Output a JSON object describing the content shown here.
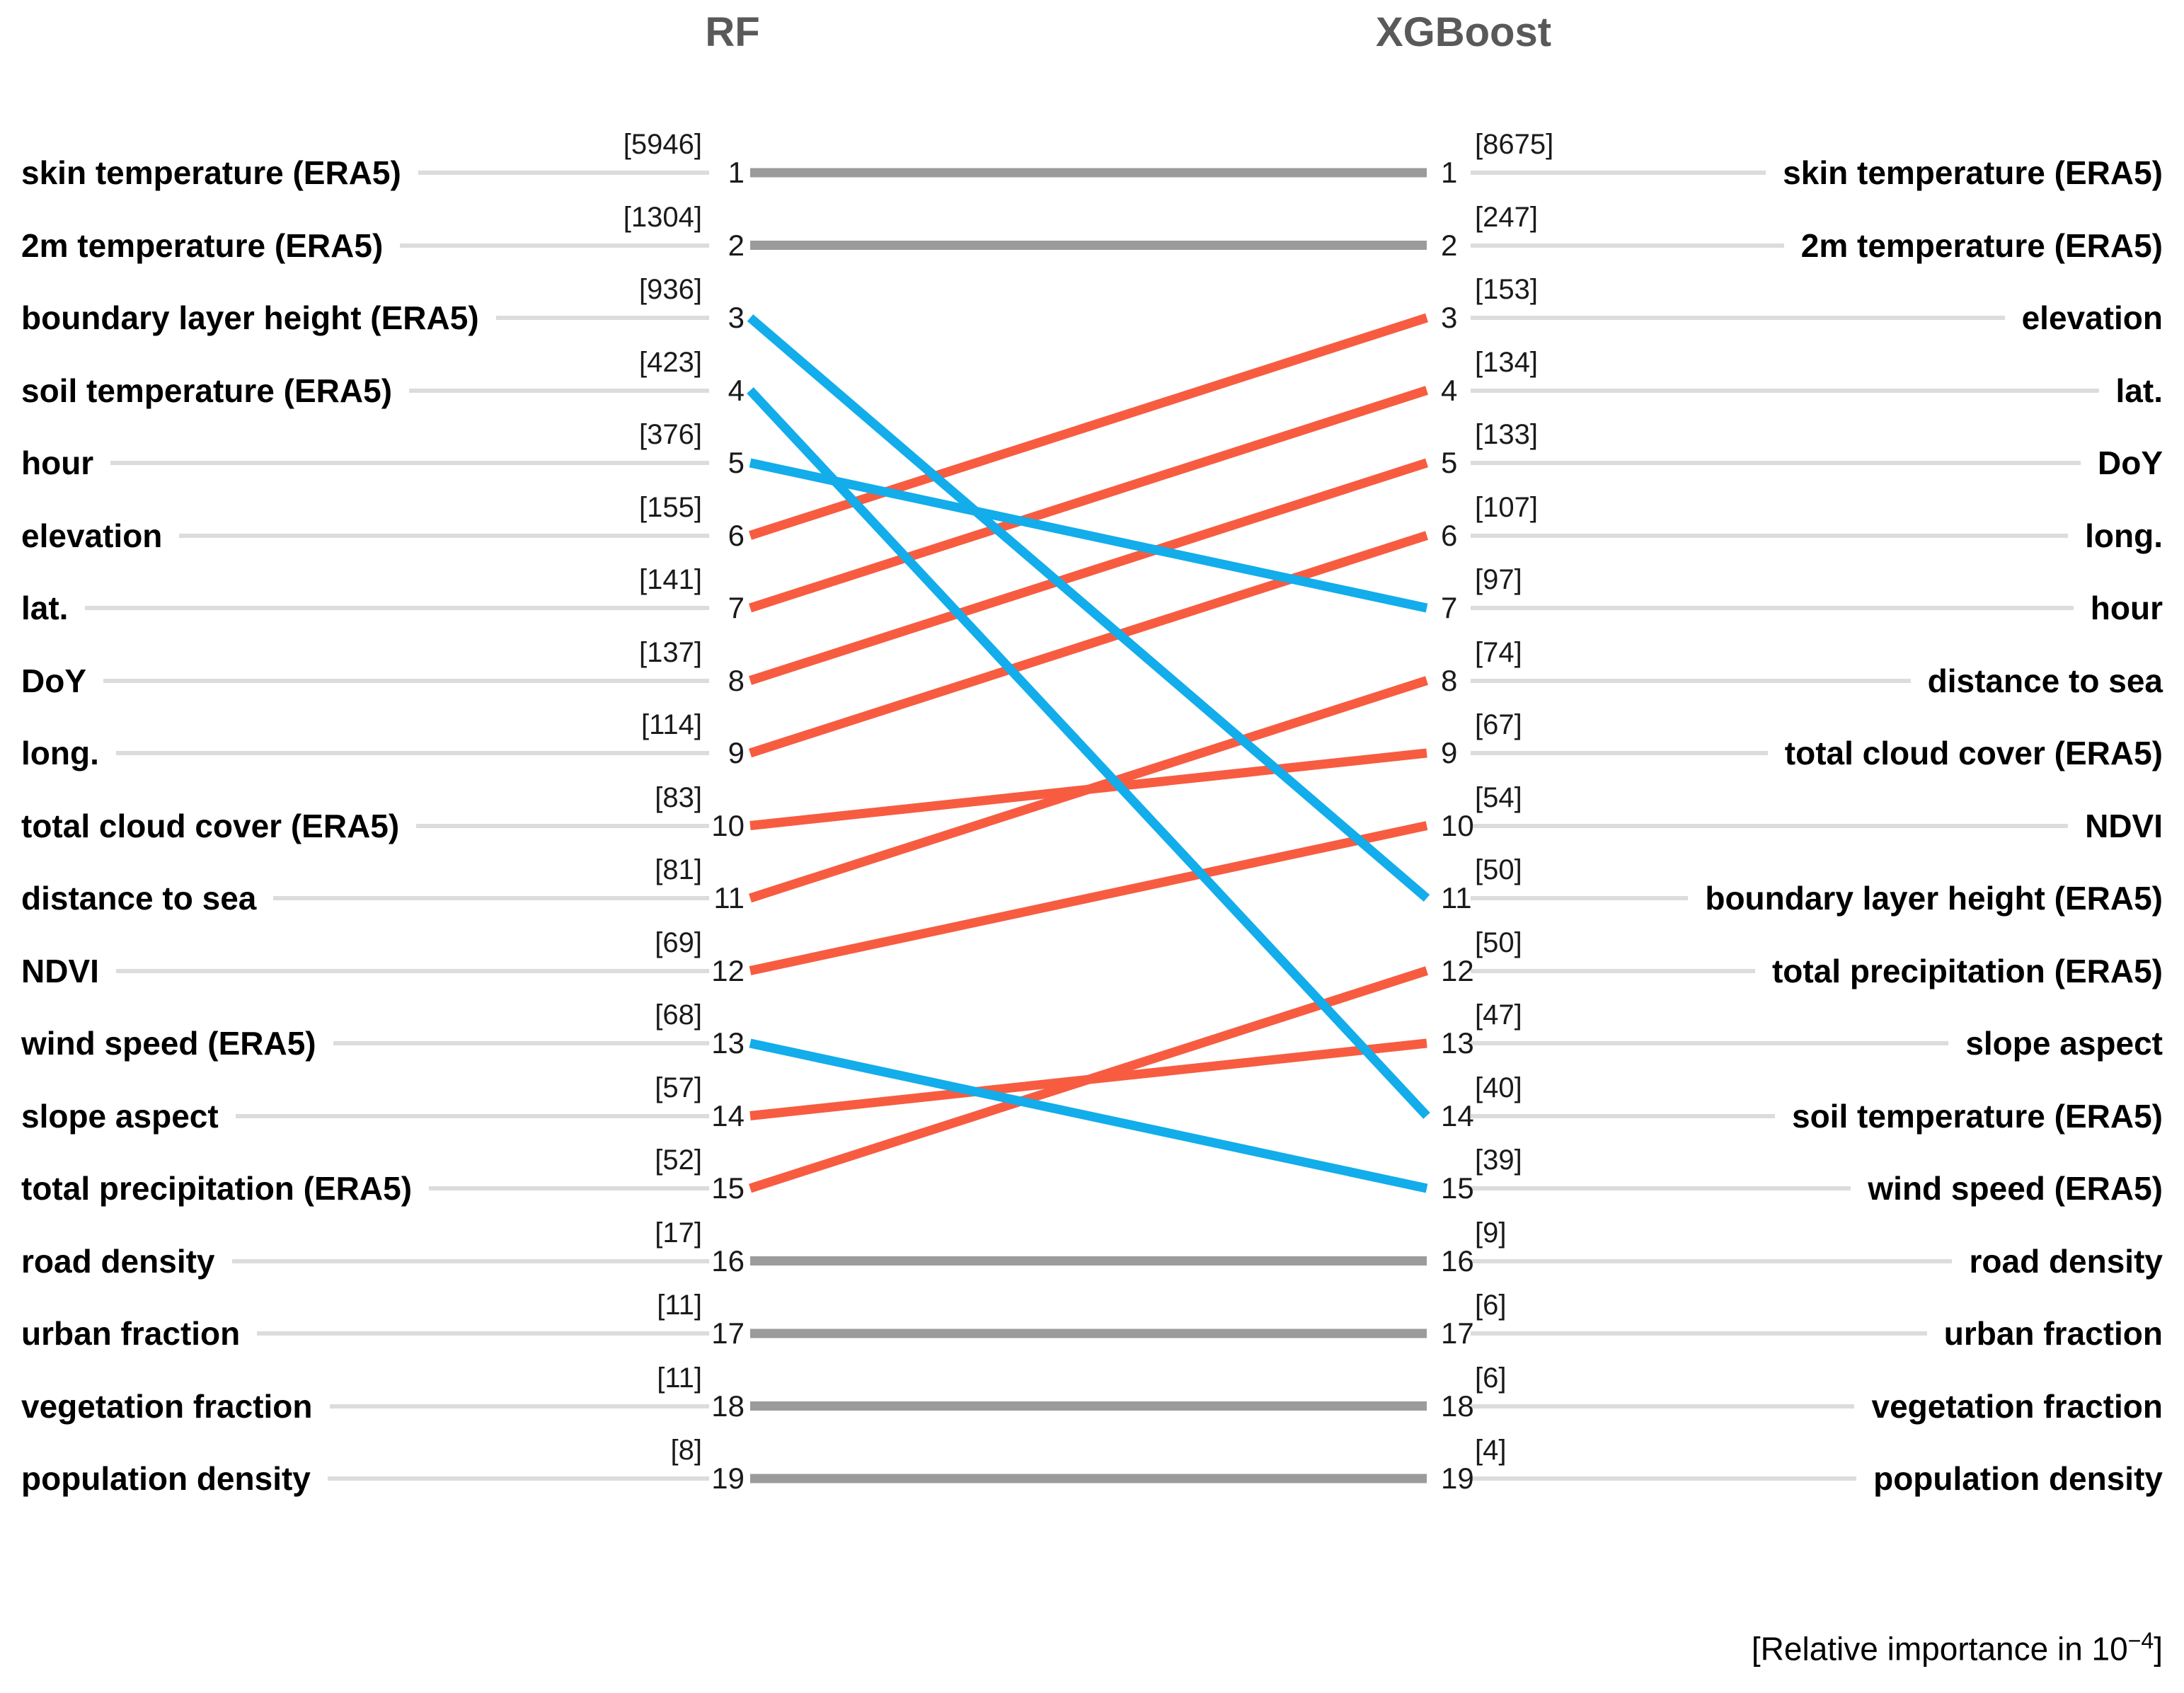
{
  "header": {
    "left_model": "RF",
    "right_model": "XGBoost"
  },
  "caption": {
    "text": "[Relative importance in 10",
    "exponent": "−4",
    "close": "]"
  },
  "colors": {
    "rank_up": "#f75c41",
    "rank_down": "#12adea",
    "rank_same": "#9b9b9b",
    "leader_line": "#dcdcdc",
    "title_text": "#595959"
  },
  "chart_data": {
    "type": "line",
    "subtype": "bump-chart-rank-comparison",
    "title": "",
    "columns": [
      "RF",
      "XGBoost"
    ],
    "n_ranks": 19,
    "value_format": "[value]",
    "footnote": "[Relative importance in 10^-4]",
    "features": [
      {
        "label": "skin temperature (ERA5)",
        "rf_rank": 1,
        "rf_value": 5946,
        "xgb_rank": 1,
        "xgb_value": 8675
      },
      {
        "label": "2m temperature (ERA5)",
        "rf_rank": 2,
        "rf_value": 1304,
        "xgb_rank": 2,
        "xgb_value": 247
      },
      {
        "label": "boundary layer height (ERA5)",
        "rf_rank": 3,
        "rf_value": 936,
        "xgb_rank": 11,
        "xgb_value": 50
      },
      {
        "label": "soil temperature (ERA5)",
        "rf_rank": 4,
        "rf_value": 423,
        "xgb_rank": 14,
        "xgb_value": 40
      },
      {
        "label": "hour",
        "rf_rank": 5,
        "rf_value": 376,
        "xgb_rank": 7,
        "xgb_value": 97
      },
      {
        "label": "elevation",
        "rf_rank": 6,
        "rf_value": 155,
        "xgb_rank": 3,
        "xgb_value": 153
      },
      {
        "label": "lat.",
        "rf_rank": 7,
        "rf_value": 141,
        "xgb_rank": 4,
        "xgb_value": 134
      },
      {
        "label": "DoY",
        "rf_rank": 8,
        "rf_value": 137,
        "xgb_rank": 5,
        "xgb_value": 133
      },
      {
        "label": "long.",
        "rf_rank": 9,
        "rf_value": 114,
        "xgb_rank": 6,
        "xgb_value": 107
      },
      {
        "label": "total cloud cover (ERA5)",
        "rf_rank": 10,
        "rf_value": 83,
        "xgb_rank": 9,
        "xgb_value": 67
      },
      {
        "label": "distance to sea",
        "rf_rank": 11,
        "rf_value": 81,
        "xgb_rank": 8,
        "xgb_value": 74
      },
      {
        "label": "NDVI",
        "rf_rank": 12,
        "rf_value": 69,
        "xgb_rank": 10,
        "xgb_value": 54
      },
      {
        "label": "wind speed (ERA5)",
        "rf_rank": 13,
        "rf_value": 68,
        "xgb_rank": 15,
        "xgb_value": 39
      },
      {
        "label": "slope aspect",
        "rf_rank": 14,
        "rf_value": 57,
        "xgb_rank": 13,
        "xgb_value": 47
      },
      {
        "label": "total precipitation (ERA5)",
        "rf_rank": 15,
        "rf_value": 52,
        "xgb_rank": 12,
        "xgb_value": 50
      },
      {
        "label": "road density",
        "rf_rank": 16,
        "rf_value": 17,
        "xgb_rank": 16,
        "xgb_value": 9
      },
      {
        "label": "urban fraction",
        "rf_rank": 17,
        "rf_value": 11,
        "xgb_rank": 17,
        "xgb_value": 6
      },
      {
        "label": "vegetation fraction",
        "rf_rank": 18,
        "rf_value": 11,
        "xgb_rank": 18,
        "xgb_value": 6
      },
      {
        "label": "population density",
        "rf_rank": 19,
        "rf_value": 8,
        "xgb_rank": 19,
        "xgb_value": 4
      }
    ]
  }
}
